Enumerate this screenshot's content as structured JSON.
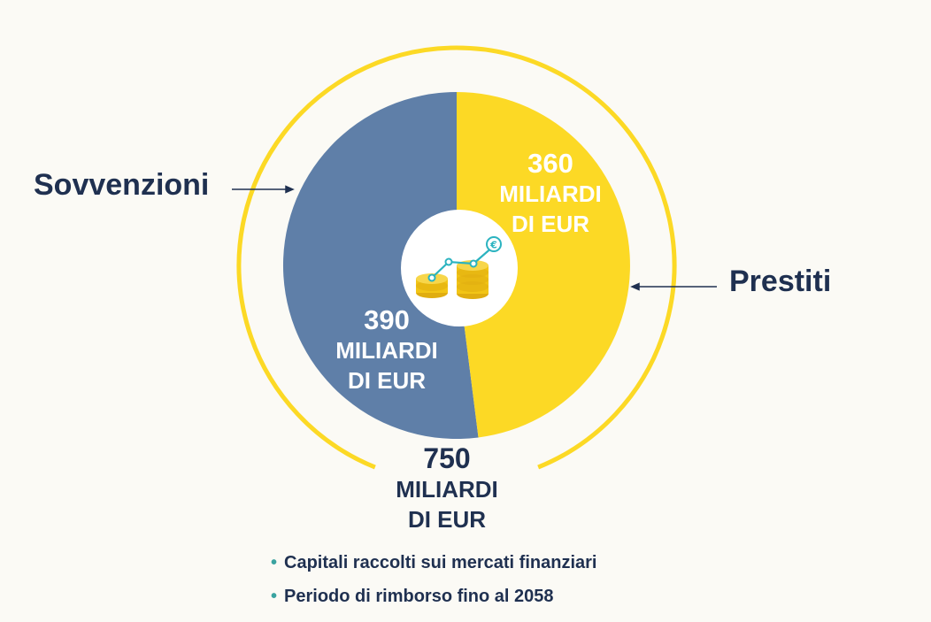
{
  "colors": {
    "background": "#fbfaf5",
    "grants": "#5f7fa8",
    "loans": "#fcd925",
    "ring": "#fcd925",
    "text_dark": "#1f3050",
    "bullet": "#3aa3a0",
    "coin": "#f2c516"
  },
  "chart_data": {
    "type": "pie",
    "title": "",
    "total": {
      "value": 750,
      "unit_line1": "MILIARDI",
      "unit_line2": "DI EUR"
    },
    "series": [
      {
        "name": "Sovvenzioni",
        "value": 390,
        "unit_line1": "MILIARDI",
        "unit_line2": "DI EUR"
      },
      {
        "name": "Prestiti",
        "value": 360,
        "unit_line1": "MILIARDI",
        "unit_line2": "DI EUR"
      }
    ],
    "center_icon": "coins-growth-euro-icon"
  },
  "notes": [
    "Capitali raccolti sui mercati finanziari",
    "Periodo di rimborso fino al 2058"
  ]
}
